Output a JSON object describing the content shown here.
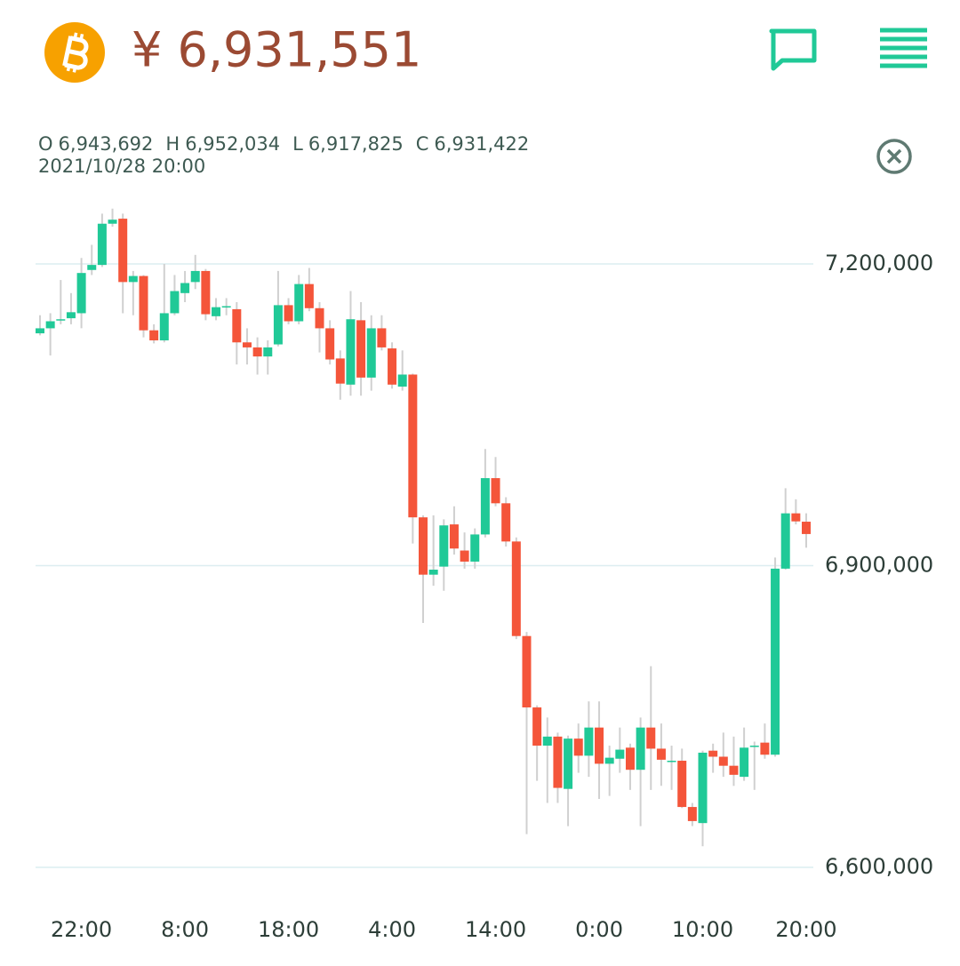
{
  "header": {
    "price": "¥ 6,931,551",
    "ohlc_keys": [
      "O",
      "H",
      "L",
      "C"
    ],
    "ohlc_values": [
      "6,943,692",
      "6,952,034",
      "6,917,825",
      "6,931,422"
    ],
    "datetime": "2021/10/28 20:00"
  },
  "chart_data": {
    "type": "candlestick",
    "categories": [
      null,
      null,
      null,
      null,
      "22:00",
      null,
      null,
      null,
      null,
      null,
      null,
      null,
      null,
      null,
      "8:00",
      null,
      null,
      null,
      null,
      null,
      null,
      null,
      null,
      null,
      "18:00",
      null,
      null,
      null,
      null,
      null,
      null,
      null,
      null,
      null,
      "4:00",
      null,
      null,
      null,
      null,
      null,
      null,
      null,
      null,
      null,
      "14:00",
      null,
      null,
      null,
      null,
      null,
      null,
      null,
      null,
      null,
      "0:00",
      null,
      null,
      null,
      null,
      null,
      null,
      null,
      null,
      null,
      "10:00",
      null,
      null,
      null,
      null,
      null,
      null,
      null,
      null,
      null,
      "20:00"
    ],
    "open": [
      7131000,
      7136000,
      7144000,
      7146000,
      7151000,
      7194000,
      7199000,
      7240000,
      7245000,
      7182000,
      7188000,
      7134000,
      7124000,
      7151000,
      7171000,
      7182000,
      7193000,
      7148000,
      7158000,
      7155000,
      7122000,
      7117000,
      7108000,
      7120000,
      7159000,
      7143000,
      7180000,
      7156000,
      7136000,
      7106000,
      7080000,
      7144000,
      7087000,
      7136000,
      7116000,
      7078000,
      7090000,
      6948000,
      6891000,
      6899000,
      6941000,
      6915000,
      6904000,
      6931000,
      6987000,
      6962000,
      6924000,
      6830000,
      6759000,
      6721000,
      6730000,
      6678000,
      6728000,
      6711000,
      6739000,
      6703000,
      6708000,
      6719000,
      6697000,
      6739000,
      6718000,
      6706000,
      6706000,
      6660000,
      6644000,
      6716000,
      6710000,
      6701000,
      6690000,
      6721000,
      6724000,
      6712000,
      6897000,
      6952000,
      6943692
    ],
    "high": [
      7149000,
      7151000,
      7184000,
      7171000,
      7206000,
      7219000,
      7250000,
      7255000,
      7250000,
      7193000,
      7189000,
      7140000,
      7200000,
      7189000,
      7193000,
      7209000,
      7195000,
      7166000,
      7166000,
      7162000,
      7136000,
      7127000,
      7124000,
      7193000,
      7166000,
      7189000,
      7196000,
      7162000,
      7144000,
      7114000,
      7173000,
      7162000,
      7149000,
      7149000,
      7122000,
      7114000,
      7091000,
      6950000,
      6950000,
      6946000,
      6959000,
      6933000,
      6937000,
      7016000,
      7008000,
      6968000,
      6928000,
      6834000,
      6761000,
      6749000,
      6734000,
      6731000,
      6743000,
      6765000,
      6765000,
      6721000,
      6739000,
      6723000,
      6749000,
      6800000,
      6743000,
      6721000,
      6718000,
      6664000,
      6716000,
      6723000,
      6734000,
      6730000,
      6739000,
      6725000,
      6743000,
      6908000,
      6977000,
      6966000,
      6952034
    ],
    "low": [
      7129000,
      7109000,
      7140000,
      7140000,
      7136000,
      7189000,
      7197000,
      7237000,
      7151000,
      7149000,
      7127000,
      7121000,
      7122000,
      7149000,
      7162000,
      7175000,
      7144000,
      7144000,
      7149000,
      7100000,
      7100000,
      7090000,
      7090000,
      7118000,
      7140000,
      7140000,
      7153000,
      7112000,
      7100000,
      7065000,
      7069000,
      7069000,
      7074000,
      7114000,
      7076000,
      7074000,
      6922000,
      6843000,
      6880000,
      6875000,
      6911000,
      6897000,
      6897000,
      6928000,
      6959000,
      6919000,
      6827000,
      6633000,
      6686000,
      6664000,
      6664000,
      6641000,
      6694000,
      6690000,
      6668000,
      6671000,
      6694000,
      6677000,
      6641000,
      6677000,
      6681000,
      6677000,
      6659000,
      6641000,
      6621000,
      6694000,
      6690000,
      6681000,
      6686000,
      6677000,
      6708000,
      6710000,
      6896000,
      6941000,
      6917825
    ],
    "close": [
      7136000,
      7143000,
      7145000,
      7152000,
      7191000,
      7199000,
      7240000,
      7244000,
      7182000,
      7188000,
      7134000,
      7124000,
      7151000,
      7173000,
      7181000,
      7193000,
      7150000,
      7157000,
      7158000,
      7122000,
      7117000,
      7108000,
      7117000,
      7159000,
      7143000,
      7180000,
      7156000,
      7136000,
      7105000,
      7081000,
      7145000,
      7087000,
      7136000,
      7117000,
      7080000,
      7090000,
      6948000,
      6891000,
      6896000,
      6940000,
      6917000,
      6904000,
      6931000,
      6987000,
      6962000,
      6924000,
      6830000,
      6759000,
      6721000,
      6730000,
      6679000,
      6728000,
      6711000,
      6739000,
      6703000,
      6709000,
      6717000,
      6697000,
      6739000,
      6718000,
      6707000,
      6706000,
      6660000,
      6646000,
      6714000,
      6710000,
      6701000,
      6692000,
      6719000,
      6721000,
      6712000,
      6897000,
      6952000,
      6944000,
      6931422
    ],
    "up_color": "#20c997",
    "down_color": "#f4553a",
    "wick_color": "#d0d0d0",
    "ylim": [
      6580000,
      7260000
    ],
    "yticks": [
      {
        "value": 6600000,
        "label": "6,600,000"
      },
      {
        "value": 6900000,
        "label": "6,900,000"
      },
      {
        "value": 7200000,
        "label": "7,200,000"
      }
    ],
    "grid": true
  }
}
